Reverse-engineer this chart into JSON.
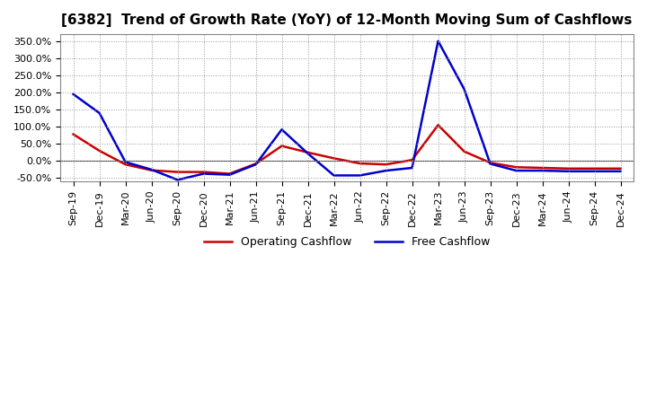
{
  "title": "[6382]  Trend of Growth Rate (YoY) of 12-Month Moving Sum of Cashflows",
  "x_labels": [
    "Sep-19",
    "Dec-19",
    "Mar-20",
    "Jun-20",
    "Sep-20",
    "Dec-20",
    "Mar-21",
    "Jun-21",
    "Sep-21",
    "Dec-21",
    "Mar-22",
    "Jun-22",
    "Sep-22",
    "Dec-22",
    "Mar-23",
    "Jun-23",
    "Sep-23",
    "Dec-23",
    "Mar-24",
    "Jun-24",
    "Sep-24",
    "Dec-24"
  ],
  "operating_cashflow": [
    0.78,
    0.3,
    -0.1,
    -0.27,
    -0.32,
    -0.32,
    -0.37,
    -0.08,
    0.44,
    0.25,
    0.08,
    -0.07,
    -0.1,
    0.03,
    1.05,
    0.28,
    -0.05,
    -0.18,
    -0.2,
    -0.22,
    -0.22,
    -0.22
  ],
  "free_cashflow": [
    1.95,
    1.4,
    -0.03,
    -0.25,
    -0.55,
    -0.37,
    -0.4,
    -0.1,
    0.92,
    0.22,
    -0.42,
    -0.42,
    -0.28,
    -0.2,
    3.5,
    2.1,
    -0.08,
    -0.28,
    -0.28,
    -0.3,
    -0.3,
    -0.3
  ],
  "operating_color": "#cc0000",
  "free_color": "#0000cc",
  "ylim_min": -0.6,
  "ylim_max": 3.7,
  "yticks": [
    -0.5,
    0.0,
    0.5,
    1.0,
    1.5,
    2.0,
    2.5,
    3.0,
    3.5
  ],
  "background_color": "#ffffff",
  "grid_color": "#999999",
  "legend_op": "Operating Cashflow",
  "legend_fc": "Free Cashflow",
  "title_fontsize": 11
}
